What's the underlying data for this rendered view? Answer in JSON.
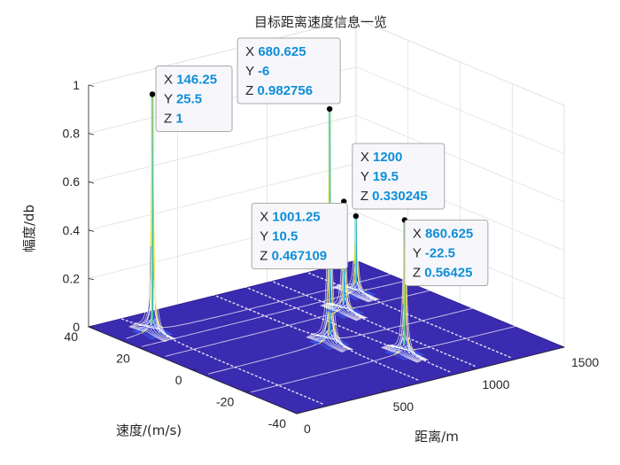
{
  "chart_data": {
    "type": "surface",
    "title": "目标距离速度信息一览",
    "xlabel": "距离/m",
    "ylabel": "速度/(m/s)",
    "zlabel": "幅度/db",
    "xlim": [
      0,
      1500
    ],
    "ylim": [
      -40,
      40
    ],
    "zlim": [
      0,
      1
    ],
    "xticks": [
      "0",
      "500",
      "1000",
      "1500"
    ],
    "yticks": [
      "-40",
      "-20",
      "0",
      "20",
      "40"
    ],
    "zticks": [
      "0",
      "0.2",
      "0.4",
      "0.6",
      "0.8",
      "1"
    ],
    "grid": true,
    "surface_color": "#3a2bb0",
    "peak_colors": [
      "#3f5ef0",
      "#22b4d8",
      "#f5e81e"
    ],
    "targets": [
      {
        "x": "146.25",
        "y": "25.5",
        "z": "1"
      },
      {
        "x": "680.625",
        "y": "-6",
        "z": "0.982756"
      },
      {
        "x": "1200",
        "y": "19.5",
        "z": "0.330245"
      },
      {
        "x": "1001.25",
        "y": "10.5",
        "z": "0.467109"
      },
      {
        "x": "860.625",
        "y": "-22.5",
        "z": "0.56425"
      }
    ]
  },
  "datatip": {
    "x_key": "X",
    "y_key": "Y",
    "z_key": "Z"
  }
}
